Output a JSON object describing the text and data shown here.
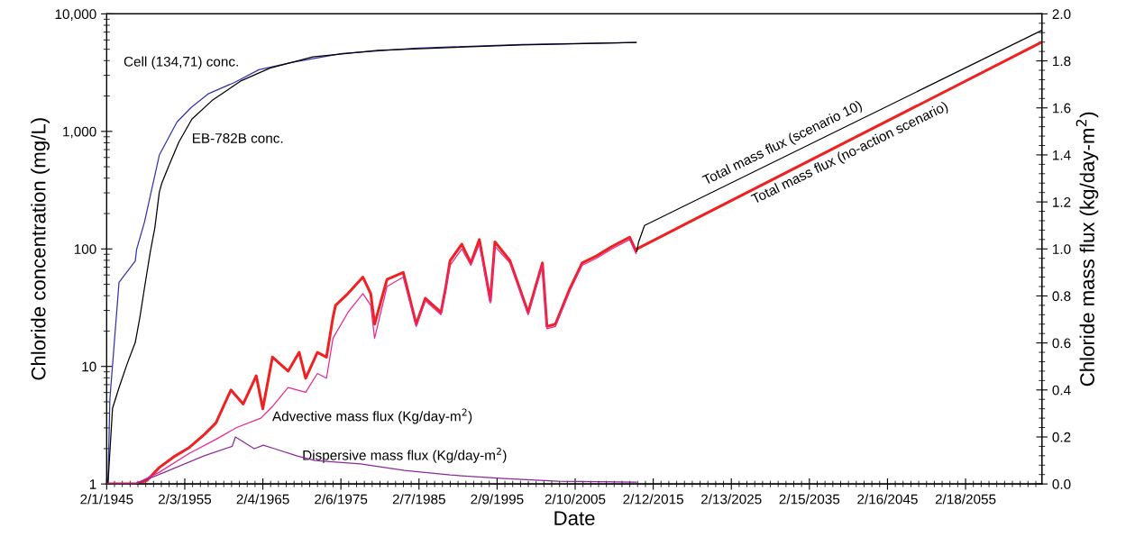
{
  "chart_data": {
    "type": "line",
    "xlabel": "Date",
    "ylabel": "Chloride concentration (mg/L)",
    "y2label": "Chloride mass flux (kg/day-m$^{2}$)",
    "log": "y",
    "grid": false,
    "legend": false,
    "marker": "none",
    "line_style": "solid",
    "xlim": [
      "1945-02-01",
      "2064-12-01"
    ],
    "xticks": [
      {
        "value": "1945-02-01",
        "label": "2/1/1945"
      },
      {
        "value": "1955-02-03",
        "label": "2/3/1955"
      },
      {
        "value": "1965-02-04",
        "label": "2/4/1965"
      },
      {
        "value": "1975-02-06",
        "label": "2/6/1975"
      },
      {
        "value": "1985-02-07",
        "label": "2/7/1985"
      },
      {
        "value": "1995-02-09",
        "label": "2/9/1995"
      },
      {
        "value": "2005-02-10",
        "label": "2/10/2005"
      },
      {
        "value": "2015-02-12",
        "label": "2/12/2015"
      },
      {
        "value": "2025-02-13",
        "label": "2/13/2025"
      },
      {
        "value": "2035-02-15",
        "label": "2/15/2035"
      },
      {
        "value": "2045-02-16",
        "label": "2/16/2045"
      },
      {
        "value": "2055-02-18",
        "label": "2/18/2055"
      }
    ],
    "ylim": [
      1,
      10000
    ],
    "yticks": [
      1,
      10,
      100,
      {
        "value": 1000,
        "label": "1,000"
      },
      {
        "value": 10000,
        "label": "10,000"
      }
    ],
    "y2lim": [
      0,
      2
    ],
    "y2ticks": [
      {
        "value": 0,
        "label": "0.0"
      },
      {
        "value": 0.2,
        "label": "0.2"
      },
      {
        "value": 0.4,
        "label": "0.4"
      },
      {
        "value": 0.6,
        "label": "0.6"
      },
      {
        "value": 0.8,
        "label": "0.8"
      },
      {
        "value": 1,
        "label": "1.0"
      },
      {
        "value": 1.2,
        "label": "1.2"
      },
      {
        "value": 1.4,
        "label": "1.4"
      },
      {
        "value": 1.6,
        "label": "1.6"
      },
      {
        "value": 1.8,
        "label": "1.8"
      },
      {
        "value": 2,
        "label": "2.0"
      }
    ],
    "series": [
      {
        "name": "Cell (134,71) conc.",
        "color": "#3333aa",
        "x": [
          "1945-02",
          "1945-04",
          "1945-07",
          "1946-09",
          "1948-10",
          "1948-12",
          "1949-12",
          "1951-11",
          "1954-02",
          "1955-12",
          "1958-03",
          "1961-06",
          "1964-08",
          "1968-10",
          "1975-04",
          "1984-06",
          "1998-04",
          "2012-12"
        ],
        "values": [
          1,
          1,
          5.3,
          52,
          79,
          99,
          168,
          630,
          1200,
          1600,
          2100,
          2600,
          3350,
          3850,
          4600,
          5100,
          5500,
          5700
        ]
      },
      {
        "name": "EB-782B conc.",
        "color": "#000000",
        "x": [
          "1945-04",
          "1945-11",
          "1946-09",
          "1947-10",
          "1948-10",
          "1949-05",
          "1949-12",
          "1950-09",
          "1951-04",
          "1951-11",
          "1952-03",
          "1953-01",
          "1954-05",
          "1956-01",
          "1958-08",
          "1962-05",
          "1966-01",
          "1971-07",
          "1979-11",
          "1998-04",
          "2012-12"
        ],
        "values": [
          1,
          4.4,
          6.6,
          10.7,
          16,
          26,
          46,
          94,
          150,
          305,
          365,
          500,
          810,
          1270,
          1830,
          2700,
          3450,
          4300,
          4900,
          5450,
          5700
        ]
      },
      {
        "name": "Total mass flux (no-action scenario)",
        "color": "#ee2222",
        "axis": "y2",
        "x": [
          "1945-02",
          "1948-10",
          "1950-04",
          "1951-11",
          "1953-09",
          "1955-09",
          "1957-08",
          "1959-02",
          "1961-01",
          "1962-08",
          "1964-04",
          "1965-02",
          "1966-05",
          "1968-05",
          "1969-10",
          "1970-08",
          "1972-02",
          "1973-04",
          "1974-02",
          "1974-06",
          "1976-01",
          "1977-12",
          "1978-12",
          "1979-06",
          "1981-01",
          "1983-02",
          "1984-10",
          "1985-12",
          "1987-12",
          "1988-07",
          "1989-02",
          "1990-08",
          "1991-10",
          "1992-11",
          "1994-04",
          "1994-11",
          "1996-10",
          "1999-02",
          "2000-12",
          "2001-07",
          "2002-08",
          "2004-06",
          "2006-01",
          "2007-11",
          "2009-11",
          "2012-02",
          "2012-12",
          "2013-01",
          "2064-12"
        ],
        "values": [
          0,
          0,
          0.015,
          0.07,
          0.115,
          0.155,
          0.21,
          0.26,
          0.4,
          0.34,
          0.46,
          0.32,
          0.54,
          0.48,
          0.56,
          0.45,
          0.56,
          0.54,
          0.71,
          0.76,
          0.81,
          0.88,
          0.81,
          0.68,
          0.87,
          0.9,
          0.68,
          0.79,
          0.73,
          0.83,
          0.95,
          1.02,
          0.94,
          1.04,
          0.78,
          1.03,
          0.95,
          0.73,
          0.94,
          0.67,
          0.68,
          0.83,
          0.94,
          0.97,
          1.01,
          1.05,
          0.99,
          1.0,
          1.88
        ]
      },
      {
        "name": "Advective mass flux (Kg/day-m$^{2}$)",
        "color": "#e8288c",
        "axis": "y2",
        "x": [
          "1945-02",
          "1948-10",
          "1951-11",
          "1955-09",
          "1959-02",
          "1961-10",
          "1964-11",
          "1966-05",
          "1968-05",
          "1970-08",
          "1972-02",
          "1973-04",
          "1974-02",
          "1976-01",
          "1977-12",
          "1978-12",
          "1979-06",
          "1981-01",
          "1983-02",
          "1984-10",
          "1985-12",
          "1987-12",
          "1988-07",
          "1989-02",
          "1990-08",
          "1991-10",
          "1992-11",
          "1994-04",
          "1994-11",
          "1996-10",
          "1999-02",
          "2000-12",
          "2001-07",
          "2002-08",
          "2004-06",
          "2006-01",
          "2007-11",
          "2009-11",
          "2012-02",
          "2012-12"
        ],
        "values": [
          0,
          0,
          0.05,
          0.13,
          0.19,
          0.24,
          0.28,
          0.33,
          0.41,
          0.39,
          0.47,
          0.45,
          0.62,
          0.73,
          0.81,
          0.76,
          0.62,
          0.84,
          0.88,
          0.67,
          0.78,
          0.72,
          0.82,
          0.93,
          1.0,
          0.93,
          1.02,
          0.77,
          1.01,
          0.94,
          0.72,
          0.93,
          0.66,
          0.67,
          0.82,
          0.93,
          0.96,
          1.0,
          1.04,
          0.98
        ]
      },
      {
        "name": "Total mass flux (scenario 10)",
        "color": "#000000",
        "axis": "y2",
        "x": [
          "2013-01",
          "2013-04",
          "2014-01",
          "2064-12"
        ],
        "values": [
          0.99,
          1.03,
          1.1,
          1.93
        ]
      },
      {
        "name": "Dispersive mass flux (Kg/day-m$^{2}$)",
        "color": "#8b2a9a",
        "axis": "y2",
        "x": [
          "1945-02",
          "1948-10",
          "1952-03",
          "1957-08",
          "1961-03",
          "1961-08",
          "1964-01",
          "1965-03",
          "1966-08",
          "1969-06",
          "1971-10",
          "1977-08",
          "1983-04",
          "1989-02",
          "1996-01",
          "2002-12",
          "2012-12"
        ],
        "values": [
          0,
          0,
          0.045,
          0.12,
          0.16,
          0.2,
          0.15,
          0.165,
          0.15,
          0.12,
          0.1,
          0.085,
          0.058,
          0.038,
          0.023,
          0.012,
          0.008
        ]
      }
    ]
  }
}
